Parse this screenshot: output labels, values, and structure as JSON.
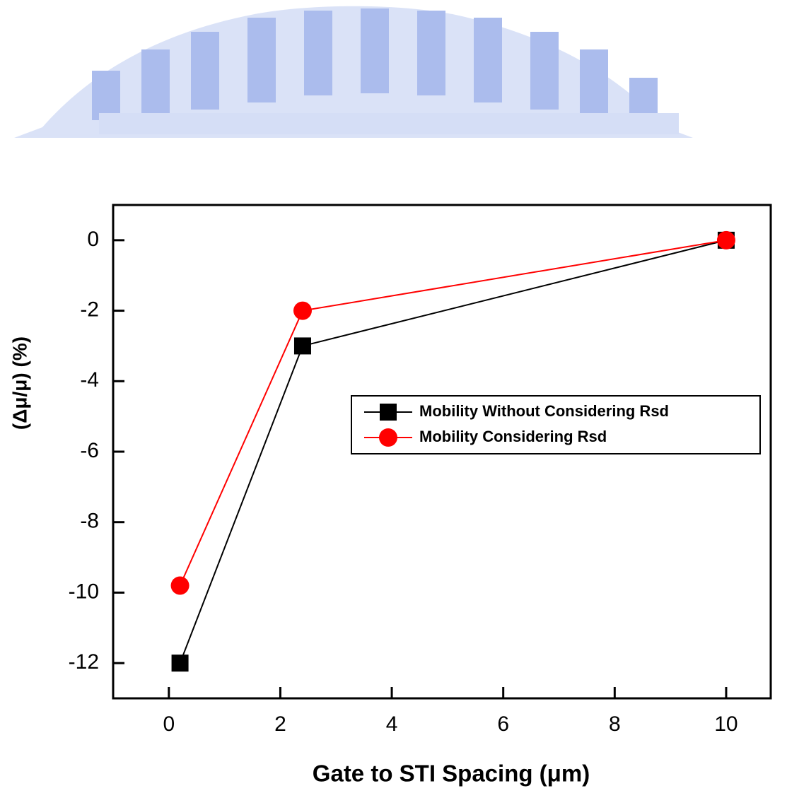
{
  "chart_data": {
    "type": "line",
    "x_label": "Gate to STI Spacing (μm)",
    "y_label": "(Δμ/μ)  (%)",
    "series": [
      {
        "name": "Mobility Without Considering Rsd",
        "color": "#000000",
        "marker": "square",
        "x": [
          0.2,
          2.4,
          10
        ],
        "values": [
          -12,
          -3,
          0
        ]
      },
      {
        "name": "Mobility Considering Rsd",
        "color": "#ff0000",
        "marker": "circle",
        "x": [
          0.2,
          2.4,
          10
        ],
        "values": [
          -9.8,
          -2,
          0
        ]
      }
    ],
    "xlim": [
      -1,
      10.8
    ],
    "xticks": [
      0,
      2,
      4,
      6,
      8,
      10
    ],
    "ylim": [
      -13,
      1
    ],
    "yticks": [
      0,
      -2,
      -4,
      -6,
      -8,
      -10,
      -12
    ],
    "grid": false,
    "legend_position": "center-right"
  }
}
